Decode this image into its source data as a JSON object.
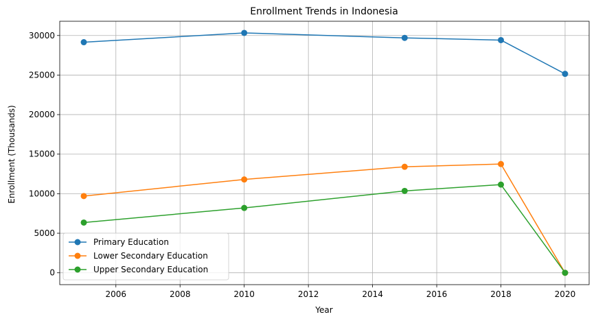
{
  "chart_data": {
    "type": "line",
    "title": "Enrollment Trends in Indonesia",
    "xlabel": "Year",
    "ylabel": "Enrollment (Thousands)",
    "xlim": [
      2004.25,
      2020.75
    ],
    "ylim": [
      -1500,
      31800
    ],
    "x_ticks": [
      2006,
      2008,
      2010,
      2012,
      2014,
      2016,
      2018,
      2020
    ],
    "y_ticks": [
      0,
      5000,
      10000,
      15000,
      20000,
      25000,
      30000
    ],
    "grid": true,
    "legend_position": "lower-left",
    "series": [
      {
        "name": "Primary Education",
        "color": "#1f77b4",
        "x": [
          2005,
          2010,
          2015,
          2018,
          2020
        ],
        "y": [
          29150,
          30330,
          29700,
          29420,
          25150
        ]
      },
      {
        "name": "Lower Secondary Education",
        "color": "#ff7f0e",
        "x": [
          2005,
          2010,
          2015,
          2018,
          2020
        ],
        "y": [
          9700,
          11800,
          13400,
          13750,
          0
        ]
      },
      {
        "name": "Upper Secondary Education",
        "color": "#2ca02c",
        "x": [
          2005,
          2010,
          2015,
          2018,
          2020
        ],
        "y": [
          6350,
          8200,
          10350,
          11150,
          0
        ]
      }
    ]
  }
}
